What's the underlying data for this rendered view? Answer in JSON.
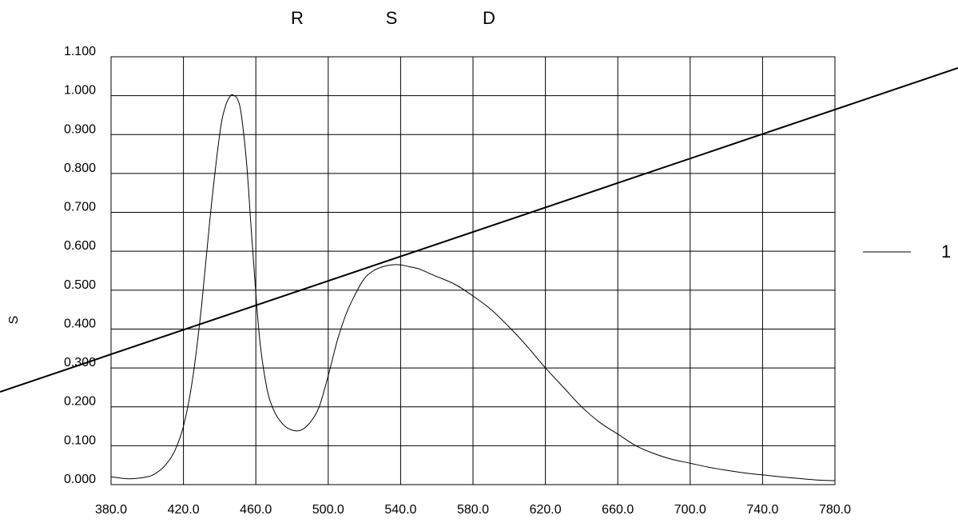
{
  "chart_data": {
    "type": "line",
    "title_letters": [
      "R",
      "S",
      "D"
    ],
    "ylabel": "S",
    "legend_label": "1",
    "xlim": [
      380,
      780
    ],
    "ylim": [
      0,
      1.1
    ],
    "x_ticks": [
      "380.0",
      "420.0",
      "460.0",
      "500.0",
      "540.0",
      "580.0",
      "620.0",
      "660.0",
      "700.0",
      "740.0",
      "780.0"
    ],
    "y_ticks": [
      "0.000",
      "0.100",
      "0.200",
      "0.300",
      "0.400",
      "0.500",
      "0.600",
      "0.700",
      "0.800",
      "0.900",
      "1.000",
      "1.100"
    ],
    "grid": true,
    "series": [
      {
        "x": [
          380,
          390,
          400,
          405,
          410,
          415,
          420,
          425,
          430,
          435,
          440,
          443,
          446,
          448,
          450,
          452,
          455,
          458,
          462,
          466,
          470,
          475,
          480,
          485,
          490,
          495,
          500,
          505,
          510,
          515,
          520,
          525,
          530,
          535,
          540,
          545,
          550,
          555,
          560,
          570,
          580,
          590,
          600,
          610,
          620,
          630,
          640,
          650,
          660,
          670,
          680,
          690,
          700,
          710,
          720,
          730,
          740,
          750,
          760,
          770,
          780
        ],
        "y": [
          0.02,
          0.015,
          0.02,
          0.03,
          0.05,
          0.085,
          0.15,
          0.27,
          0.46,
          0.7,
          0.9,
          0.97,
          1.0,
          1.0,
          0.99,
          0.95,
          0.82,
          0.62,
          0.38,
          0.25,
          0.19,
          0.155,
          0.14,
          0.14,
          0.16,
          0.2,
          0.28,
          0.37,
          0.44,
          0.49,
          0.53,
          0.55,
          0.56,
          0.565,
          0.565,
          0.56,
          0.555,
          0.545,
          0.535,
          0.515,
          0.485,
          0.45,
          0.405,
          0.355,
          0.3,
          0.25,
          0.2,
          0.16,
          0.13,
          0.1,
          0.08,
          0.065,
          0.055,
          0.045,
          0.037,
          0.03,
          0.025,
          0.02,
          0.016,
          0.012,
          0.01
        ]
      }
    ]
  }
}
